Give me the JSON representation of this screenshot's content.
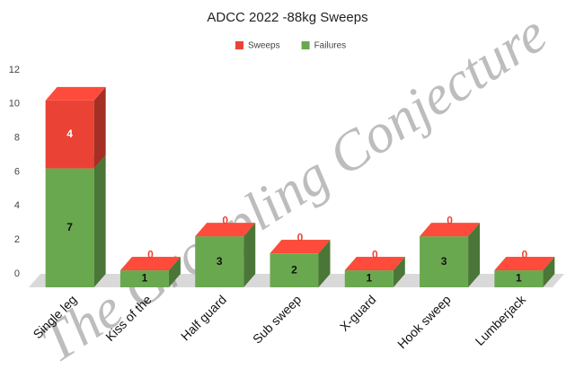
{
  "chart_data": {
    "type": "bar3d_stacked",
    "title": "ADCC 2022 -88kg Sweeps",
    "watermark": "The Grappling Conjecture",
    "categories": [
      "Single leg",
      "Kiss of the",
      "Half guard",
      "Sub sweep",
      "X-guard",
      "Hook sweep",
      "Lumberjack"
    ],
    "series": [
      {
        "name": "Failures",
        "color": "#6aa84f",
        "values": [
          7,
          1,
          3,
          2,
          1,
          3,
          1
        ]
      },
      {
        "name": "Sweeps",
        "color": "#ea4335",
        "values": [
          4,
          0,
          0,
          0,
          0,
          0,
          0
        ]
      }
    ],
    "legend_order": [
      1,
      0
    ],
    "ylim": [
      0,
      12
    ],
    "yticks": [
      0,
      2,
      4,
      6,
      8,
      10,
      12
    ]
  }
}
